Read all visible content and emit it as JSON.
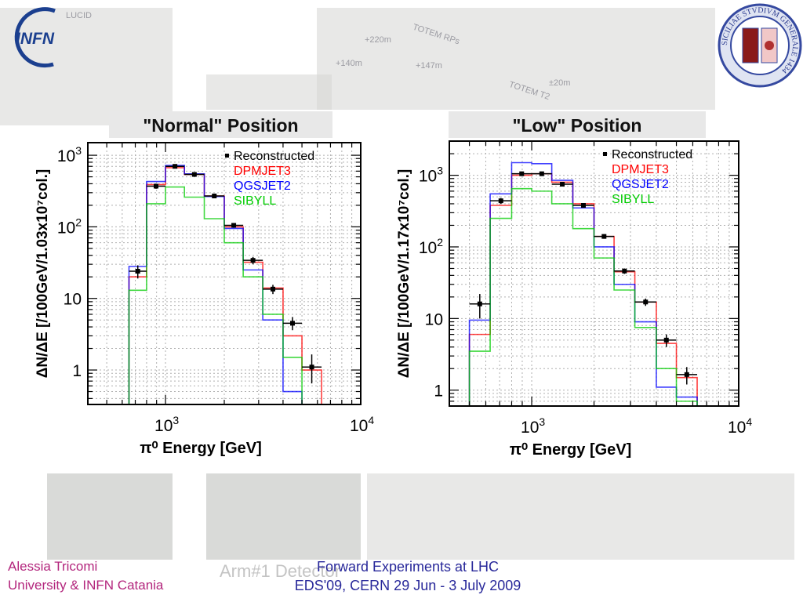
{
  "branding": {
    "logo_text": "INFN",
    "seal_text": "SICILIAE STVDIVM GENERALE 1434"
  },
  "background_labels": {
    "lucid": "LUCID",
    "totem_rp": "TOTEM RPs",
    "totem_t2": "TOTEM T2",
    "d220": "+220m",
    "d147": "+147m",
    "d140": "+140m",
    "d20": "±20m"
  },
  "footer": {
    "author": "Alessia Tricomi",
    "affiliation": "University & INFN Catania",
    "event_line1": "Forward Experiments at LHC",
    "event_line2": "EDS'09, CERN 29 Jun - 3 July 2009",
    "ghost_text": "Arm#1 Detector"
  },
  "chart_data": [
    {
      "type": "step",
      "title": "\"Normal\" Position",
      "xlabel": "π⁰ Energy [GeV]",
      "ylabel": "ΔN/ΔE [/100GeV/1.03x10⁷col.]",
      "xscale": "log",
      "yscale": "log",
      "xlim": [
        400,
        10000
      ],
      "ylim": [
        0.33,
        1500
      ],
      "grid": true,
      "legend_position": "top-right",
      "xticks": [
        {
          "value": 1000,
          "base": "10",
          "exp": "3"
        },
        {
          "value": 10000,
          "base": "10",
          "exp": "4"
        }
      ],
      "yticks": [
        {
          "value": 1,
          "label": "1"
        },
        {
          "value": 10,
          "label": "10"
        },
        {
          "value": 100,
          "base": "10",
          "exp": "2"
        },
        {
          "value": 1000,
          "base": "10",
          "exp": "3"
        }
      ],
      "bin_edges": [
        650,
        800,
        1000,
        1250,
        1580,
        2000,
        2500,
        3150,
        4000,
        5000,
        6300
      ],
      "series": [
        {
          "name": "Reconstructed",
          "kind": "points",
          "color": "#000000",
          "values": [
            24,
            370,
            700,
            540,
            270,
            105,
            34,
            13.5,
            4.5,
            1.1
          ],
          "err_low": [
            19,
            340,
            660,
            510,
            255,
            97,
            30,
            11.5,
            3.6,
            0.65
          ],
          "err_high": [
            29,
            400,
            740,
            570,
            285,
            113,
            38,
            15.5,
            5.5,
            1.65
          ]
        },
        {
          "name": "DPMJET3",
          "kind": "line",
          "color": "#ff0000",
          "values": [
            20,
            390,
            670,
            540,
            270,
            100,
            32,
            14,
            3.0,
            1.0
          ]
        },
        {
          "name": "QGSJET2",
          "kind": "line",
          "color": "#0000ff",
          "values": [
            28,
            430,
            720,
            550,
            265,
            95,
            25,
            5.0,
            0.5,
            0.3
          ]
        },
        {
          "name": "SIBYLL",
          "kind": "line",
          "color": "#00cc00",
          "values": [
            13,
            210,
            360,
            260,
            130,
            60,
            20,
            6.0,
            1.5,
            0.3
          ]
        }
      ]
    },
    {
      "type": "step",
      "title": "\"Low\" Position",
      "xlabel": "π⁰ Energy [GeV]",
      "ylabel": "ΔN/ΔE [/100GeV/1.17x10⁷col.]",
      "xscale": "log",
      "yscale": "log",
      "xlim": [
        400,
        10000
      ],
      "ylim": [
        0.6,
        3000
      ],
      "grid": true,
      "legend_position": "top-right",
      "xticks": [
        {
          "value": 1000,
          "base": "10",
          "exp": "3"
        },
        {
          "value": 10000,
          "base": "10",
          "exp": "4"
        }
      ],
      "yticks": [
        {
          "value": 1,
          "label": "1"
        },
        {
          "value": 10,
          "label": "10"
        },
        {
          "value": 100,
          "base": "10",
          "exp": "2"
        },
        {
          "value": 1000,
          "base": "10",
          "exp": "3"
        }
      ],
      "bin_edges": [
        500,
        630,
        800,
        1000,
        1250,
        1580,
        2000,
        2500,
        3150,
        4000,
        5000,
        6300
      ],
      "series": [
        {
          "name": "Reconstructed",
          "kind": "points",
          "color": "#000000",
          "values": [
            16,
            440,
            1050,
            1050,
            750,
            380,
            140,
            46,
            17,
            5,
            1.65
          ],
          "err_low": [
            10,
            400,
            990,
            990,
            710,
            360,
            130,
            42,
            15,
            4,
            1.2
          ],
          "err_high": [
            22,
            480,
            1110,
            1110,
            790,
            400,
            150,
            50,
            19,
            6,
            2.1
          ]
        },
        {
          "name": "DPMJET3",
          "kind": "line",
          "color": "#ff0000",
          "values": [
            6,
            380,
            1000,
            1050,
            800,
            400,
            140,
            45,
            17,
            4.5,
            1.5
          ]
        },
        {
          "name": "QGSJET2",
          "kind": "line",
          "color": "#0000ff",
          "values": [
            9.5,
            550,
            1500,
            1450,
            850,
            350,
            100,
            30,
            9,
            1.1,
            0.8
          ]
        },
        {
          "name": "SIBYLL",
          "kind": "line",
          "color": "#00cc00",
          "values": [
            3.5,
            250,
            650,
            600,
            400,
            180,
            70,
            25,
            7.5,
            2.0,
            0.7
          ]
        }
      ]
    }
  ]
}
